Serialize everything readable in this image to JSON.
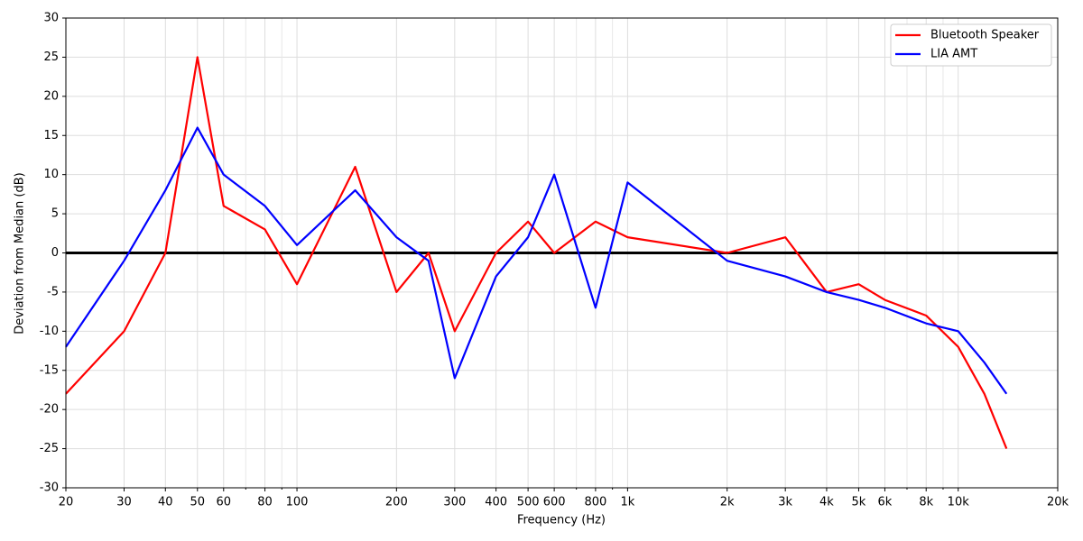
{
  "chart_data": {
    "type": "line",
    "xlabel": "Frequency (Hz)",
    "ylabel": "Deviation from Median (dB)",
    "x": [
      20,
      30,
      40,
      50,
      60,
      80,
      100,
      150,
      200,
      250,
      300,
      400,
      500,
      600,
      800,
      1000,
      2000,
      3000,
      4000,
      5000,
      6000,
      8000,
      10000,
      12000,
      14000
    ],
    "series": [
      {
        "name": "Bluetooth Speaker",
        "color": "#ff0000",
        "values": [
          -18,
          -10,
          0,
          25,
          6,
          3,
          -4,
          11,
          -5,
          0,
          -10,
          0,
          4,
          0,
          4,
          2,
          0,
          2,
          -5,
          -4,
          -6,
          -8,
          -12,
          -18,
          -25
        ]
      },
      {
        "name": "LIA AMT",
        "color": "#0000ff",
        "values": [
          -12,
          -1,
          8,
          16,
          10,
          6,
          1,
          8,
          2,
          -1,
          -16,
          -3,
          2,
          10,
          -7,
          9,
          -1,
          -3,
          -5,
          -6,
          -7,
          -9,
          -10,
          -14,
          -18
        ]
      }
    ],
    "xscale": "log",
    "xlim": [
      20,
      20000
    ],
    "xticks": [
      20,
      30,
      40,
      50,
      60,
      80,
      100,
      200,
      300,
      400,
      500,
      600,
      800,
      {
        "value": 1000,
        "label": "1k"
      },
      {
        "value": 2000,
        "label": "2k"
      },
      {
        "value": 3000,
        "label": "3k"
      },
      {
        "value": 4000,
        "label": "4k"
      },
      {
        "value": 5000,
        "label": "5k"
      },
      {
        "value": 6000,
        "label": "6k"
      },
      {
        "value": 8000,
        "label": "8k"
      },
      {
        "value": 10000,
        "label": "10k"
      },
      {
        "value": 20000,
        "label": "20k"
      }
    ],
    "x_minor_ticks": [
      70,
      90,
      700,
      900,
      7000,
      9000
    ],
    "ylim": [
      -30,
      30
    ],
    "yticks": [
      -30,
      -25,
      -20,
      -15,
      -10,
      -5,
      0,
      5,
      10,
      15,
      20,
      25,
      30
    ],
    "reference_line": 0,
    "grid": true,
    "legend": "upper right"
  }
}
